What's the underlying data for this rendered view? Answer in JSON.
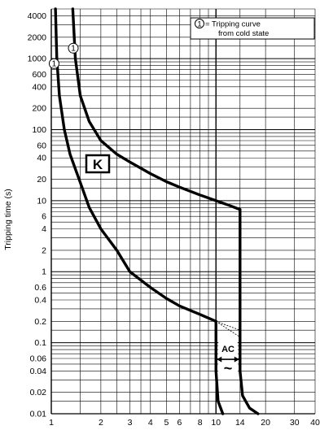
{
  "chart_data": {
    "type": "line",
    "xscale": "log",
    "yscale": "log",
    "xlim": [
      1,
      40
    ],
    "ylim": [
      0.01,
      5000
    ],
    "ylabel": "Tripping time (s)",
    "xlabel": "",
    "x_ticks": [
      {
        "value": 1,
        "label": "1"
      },
      {
        "value": 2,
        "label": "2"
      },
      {
        "value": 3,
        "label": "3"
      },
      {
        "value": 4,
        "label": "4"
      },
      {
        "value": 5,
        "label": "5"
      },
      {
        "value": 6,
        "label": "6"
      },
      {
        "value": 8,
        "label": "8"
      },
      {
        "value": 10,
        "label": "10"
      },
      {
        "value": 14,
        "label": "14"
      },
      {
        "value": 20,
        "label": "20"
      },
      {
        "value": 30,
        "label": "30"
      },
      {
        "value": 40,
        "label": "40"
      }
    ],
    "y_ticks": [
      {
        "value": 4000,
        "label": "4000"
      },
      {
        "value": 2000,
        "label": "2000"
      },
      {
        "value": 1000,
        "label": "1000"
      },
      {
        "value": 600,
        "label": "600"
      },
      {
        "value": 400,
        "label": "400"
      },
      {
        "value": 200,
        "label": "200"
      },
      {
        "value": 100,
        "label": "100"
      },
      {
        "value": 60,
        "label": "60"
      },
      {
        "value": 40,
        "label": "40"
      },
      {
        "value": 20,
        "label": "20"
      },
      {
        "value": 10,
        "label": "10"
      },
      {
        "value": 6,
        "label": "6"
      },
      {
        "value": 4,
        "label": "4"
      },
      {
        "value": 2,
        "label": "2"
      },
      {
        "value": 1,
        "label": "1"
      },
      {
        "value": 0.6,
        "label": "0.6"
      },
      {
        "value": 0.4,
        "label": "0.4"
      },
      {
        "value": 0.2,
        "label": "0.2"
      },
      {
        "value": 0.1,
        "label": "0.1"
      },
      {
        "value": 0.06,
        "label": "0.06"
      },
      {
        "value": 0.04,
        "label": "0.04"
      },
      {
        "value": 0.02,
        "label": "0.02"
      },
      {
        "value": 0.01,
        "label": "0.01"
      }
    ],
    "grid": true,
    "series": [
      {
        "points": [
          [
            1.06,
            5000
          ],
          [
            1.08,
            1000
          ],
          [
            1.12,
            300
          ],
          [
            1.2,
            100
          ],
          [
            1.3,
            45
          ],
          [
            1.5,
            18
          ],
          [
            1.7,
            8
          ],
          [
            2.0,
            4
          ],
          [
            2.5,
            2
          ],
          [
            3.0,
            1.0
          ],
          [
            4.0,
            0.6
          ],
          [
            5.0,
            0.42
          ],
          [
            6.0,
            0.33
          ],
          [
            8.0,
            0.25
          ],
          [
            10.0,
            0.2
          ]
        ]
      },
      {
        "points": [
          [
            10.0,
            0.2
          ],
          [
            10.0,
            0.04
          ],
          [
            10.3,
            0.015
          ],
          [
            11.0,
            0.01
          ]
        ]
      },
      {
        "points": [
          [
            1.35,
            5000
          ],
          [
            1.4,
            1000
          ],
          [
            1.5,
            300
          ],
          [
            1.7,
            130
          ],
          [
            2.0,
            70
          ],
          [
            2.5,
            45
          ],
          [
            3.0,
            35
          ],
          [
            4.0,
            24
          ],
          [
            5.0,
            18.5
          ],
          [
            6.0,
            15.5
          ],
          [
            8.0,
            12
          ],
          [
            10.0,
            10
          ],
          [
            12.0,
            8.6
          ],
          [
            14.0,
            7.5
          ]
        ]
      },
      {
        "points": [
          [
            14.0,
            7.5
          ],
          [
            14.0,
            0.04
          ],
          [
            14.5,
            0.018
          ],
          [
            16.0,
            0.012
          ],
          [
            18.0,
            0.01
          ]
        ]
      }
    ],
    "dashed_extensions": [
      {
        "points": [
          [
            10.0,
            0.2
          ],
          [
            14.0,
            0.12
          ]
        ]
      },
      {
        "points": [
          [
            10.0,
            0.2
          ],
          [
            14.0,
            0.15
          ]
        ]
      }
    ],
    "cold_state_markers": [
      {
        "label": "1",
        "x": 1.04,
        "y": 850
      },
      {
        "label": "1",
        "x": 1.36,
        "y": 1400
      }
    ],
    "annotations": {
      "curve_class": "K",
      "legend_marker": "1",
      "legend_line1": "= Tripping curve",
      "legend_line2": "from cold state",
      "ac_label": "AC",
      "ac_symbol": "~",
      "ac_x_range": [
        10,
        14
      ],
      "ac_y": 0.08
    }
  }
}
